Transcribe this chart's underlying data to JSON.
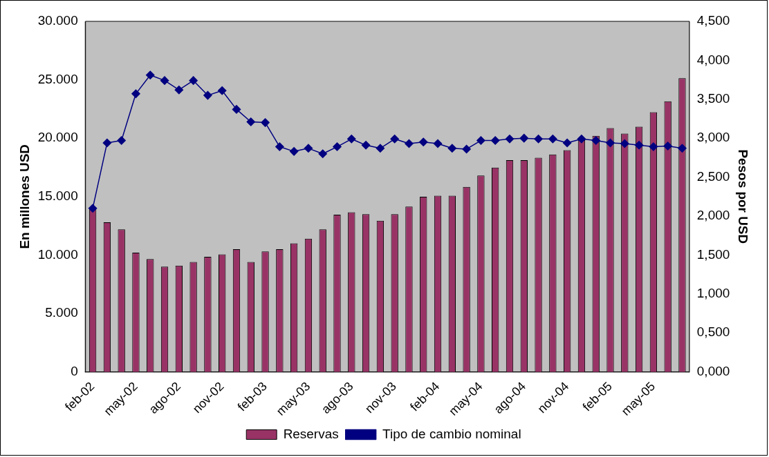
{
  "chart_data": {
    "type": "bar",
    "ylabel": "En millones USD",
    "y2label": "Pesos por USD",
    "categories": [
      "feb-02",
      null,
      null,
      "may-02",
      null,
      null,
      "ago-02",
      null,
      null,
      "nov-02",
      null,
      null,
      "feb-03",
      null,
      null,
      "may-03",
      null,
      null,
      "ago-03",
      null,
      null,
      "nov-03",
      null,
      null,
      "feb-04",
      null,
      null,
      "may-04",
      null,
      null,
      "ago-04",
      null,
      null,
      "nov-04",
      null,
      null,
      "feb-05",
      null,
      null,
      "may-05",
      null,
      null
    ],
    "series": [
      {
        "name": "Reservas",
        "color": "#993366",
        "values": [
          14000,
          12800,
          12200,
          10200,
          9650,
          9000,
          9100,
          9400,
          9850,
          10050,
          10500,
          9400,
          10300,
          10500,
          11000,
          11400,
          12200,
          13450,
          13660,
          13490,
          12930,
          13490,
          14150,
          14990,
          15080,
          15080,
          15830,
          16810,
          17480,
          18120,
          18120,
          18320,
          18610,
          18980,
          19830,
          20200,
          20870,
          20400,
          20980,
          22220,
          23150,
          25130
        ]
      },
      {
        "name": "Tipo de cambio nominal",
        "type": "line",
        "axis": "y2",
        "color": "#000080",
        "values": [
          2.1,
          2.94,
          2.97,
          3.57,
          3.81,
          3.74,
          3.62,
          3.74,
          3.55,
          3.61,
          3.37,
          3.21,
          3.2,
          2.89,
          2.83,
          2.87,
          2.8,
          2.89,
          2.99,
          2.91,
          2.87,
          2.99,
          2.93,
          2.95,
          2.93,
          2.87,
          2.86,
          2.97,
          2.97,
          2.99,
          3.0,
          2.99,
          2.99,
          2.94,
          2.99,
          2.97,
          2.94,
          2.93,
          2.91,
          2.89,
          2.9,
          2.87
        ]
      }
    ],
    "ylim": [
      0,
      30000
    ],
    "yticks": [
      {
        "value": 0,
        "label": "0"
      },
      {
        "value": 5000,
        "label": "5.000"
      },
      {
        "value": 10000,
        "label": "10.000"
      },
      {
        "value": 15000,
        "label": "15.000"
      },
      {
        "value": 20000,
        "label": "20.000"
      },
      {
        "value": 25000,
        "label": "25.000"
      },
      {
        "value": 30000,
        "label": "30.000"
      }
    ],
    "y2lim": [
      0,
      4.5
    ],
    "y2ticks": [
      {
        "value": 0,
        "label": "0,000"
      },
      {
        "value": 0.5,
        "label": "0,500"
      },
      {
        "value": 1,
        "label": "1,000"
      },
      {
        "value": 1.5,
        "label": "1,500"
      },
      {
        "value": 2,
        "label": "2,000"
      },
      {
        "value": 2.5,
        "label": "2,500"
      },
      {
        "value": 3,
        "label": "3,000"
      },
      {
        "value": 3.5,
        "label": "3,500"
      },
      {
        "value": 4,
        "label": "4,000"
      },
      {
        "value": 4.5,
        "label": "4,500"
      }
    ],
    "grid": false,
    "legend": "bottom",
    "marker": "diamond",
    "line_style": "solid"
  }
}
